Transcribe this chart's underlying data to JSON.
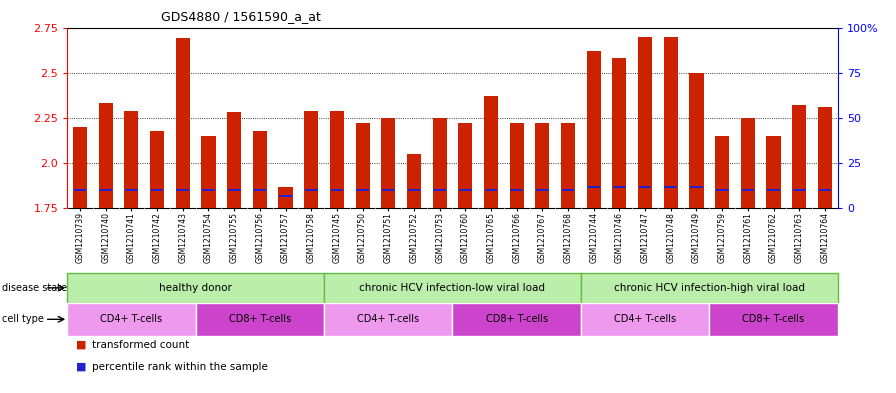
{
  "title": "GDS4880 / 1561590_a_at",
  "samples": [
    "GSM1210739",
    "GSM1210740",
    "GSM1210741",
    "GSM1210742",
    "GSM1210743",
    "GSM1210754",
    "GSM1210755",
    "GSM1210756",
    "GSM1210757",
    "GSM1210758",
    "GSM1210745",
    "GSM1210750",
    "GSM1210751",
    "GSM1210752",
    "GSM1210753",
    "GSM1210760",
    "GSM1210765",
    "GSM1210766",
    "GSM1210767",
    "GSM1210768",
    "GSM1210744",
    "GSM1210746",
    "GSM1210747",
    "GSM1210748",
    "GSM1210749",
    "GSM1210759",
    "GSM1210761",
    "GSM1210762",
    "GSM1210763",
    "GSM1210764"
  ],
  "transformed_count": [
    2.2,
    2.33,
    2.29,
    2.18,
    2.69,
    2.15,
    2.28,
    2.18,
    1.87,
    2.29,
    2.29,
    2.22,
    2.25,
    2.05,
    2.25,
    2.22,
    2.37,
    2.22,
    2.22,
    2.22,
    2.62,
    2.58,
    2.7,
    2.7,
    2.5,
    2.15,
    2.25,
    2.15,
    2.32,
    2.31
  ],
  "percentile_rank": [
    10,
    10,
    10,
    10,
    10,
    10,
    10,
    10,
    7,
    10,
    10,
    10,
    10,
    10,
    10,
    10,
    10,
    10,
    10,
    10,
    12,
    12,
    12,
    12,
    12,
    10,
    10,
    10,
    10,
    10
  ],
  "ylim_left": [
    1.75,
    2.75
  ],
  "ylim_right": [
    0,
    100
  ],
  "yticks_left": [
    1.75,
    2.0,
    2.25,
    2.5,
    2.75
  ],
  "yticks_right": [
    0,
    25,
    50,
    75,
    100
  ],
  "ytick_labels_right": [
    "0",
    "25",
    "50",
    "75",
    "100%"
  ],
  "bar_color": "#cc2200",
  "percentile_color": "#2222cc",
  "disease_states": [
    {
      "label": "healthy donor",
      "start": 0,
      "end": 9,
      "color": "#bbeeaa",
      "border": "#66bb44"
    },
    {
      "label": "chronic HCV infection-low viral load",
      "start": 10,
      "end": 19,
      "color": "#bbeeaa",
      "border": "#66bb44"
    },
    {
      "label": "chronic HCV infection-high viral load",
      "start": 20,
      "end": 29,
      "color": "#bbeeaa",
      "border": "#66bb44"
    }
  ],
  "cell_types": [
    {
      "label": "CD4+ T-cells",
      "start": 0,
      "end": 4,
      "color": "#ee99ee"
    },
    {
      "label": "CD8+ T-cells",
      "start": 5,
      "end": 9,
      "color": "#cc44cc"
    },
    {
      "label": "CD4+ T-cells",
      "start": 10,
      "end": 14,
      "color": "#ee99ee"
    },
    {
      "label": "CD8+ T-cells",
      "start": 15,
      "end": 19,
      "color": "#cc44cc"
    },
    {
      "label": "CD4+ T-cells",
      "start": 20,
      "end": 24,
      "color": "#ee99ee"
    },
    {
      "label": "CD8+ T-cells",
      "start": 25,
      "end": 29,
      "color": "#cc44cc"
    }
  ],
  "legend_items": [
    {
      "label": "transformed count",
      "color": "#cc2200"
    },
    {
      "label": "percentile rank within the sample",
      "color": "#2222cc"
    }
  ],
  "bg_color": "#dddddd"
}
